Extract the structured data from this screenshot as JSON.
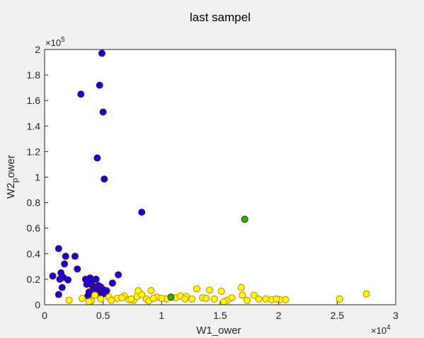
{
  "chart_data": {
    "type": "scatter",
    "title": "last sampel",
    "xlabel": "W1_ower",
    "ylabel": "W2_power",
    "ylabel_base": "W2",
    "ylabel_sub": "p",
    "ylabel_rest": "ower",
    "xlim": [
      0,
      30000
    ],
    "ylim": [
      0,
      200000
    ],
    "x_multiplier_label": "×10",
    "x_multiplier_exp": "4",
    "y_multiplier_label": "×10",
    "y_multiplier_exp": "5",
    "x_ticks": [
      0,
      5000,
      10000,
      15000,
      20000,
      25000,
      30000
    ],
    "x_tick_labels": [
      "0",
      "0.5",
      "1",
      "1.5",
      "2",
      "2.5",
      "3"
    ],
    "y_ticks": [
      0,
      20000,
      40000,
      60000,
      80000,
      100000,
      120000,
      140000,
      160000,
      180000,
      200000
    ],
    "y_tick_labels": [
      "0",
      "0.2",
      "0.4",
      "0.6",
      "0.8",
      "1",
      "1.2",
      "1.4",
      "1.6",
      "1.8",
      "2"
    ],
    "grid": false,
    "series": [
      {
        "color": "#0000ff",
        "edge_color": "#8b0000",
        "x": [
          4900,
          3100,
          4700,
          5000,
          4500,
          5100,
          8300,
          1200,
          1800,
          2600,
          1700,
          2800,
          6300,
          5800,
          700,
          1400,
          1300,
          3500,
          3900,
          4400,
          4600,
          3600,
          4100,
          4800,
          4200,
          5000,
          4500,
          3800,
          4700,
          5200,
          4300,
          4900,
          3700,
          1500,
          2000,
          1200,
          1600,
          4000,
          5300
        ],
        "y": [
          197000,
          165000,
          172000,
          151000,
          115000,
          98500,
          72500,
          44000,
          38000,
          38000,
          32000,
          28000,
          23500,
          17000,
          22500,
          25000,
          20000,
          20000,
          21000,
          20000,
          15000,
          16000,
          15000,
          14000,
          12500,
          12000,
          11500,
          10000,
          9500,
          9000,
          8500,
          8000,
          7000,
          13500,
          19500,
          8000,
          21500,
          18000,
          11000
        ]
      },
      {
        "color": "#ffff00",
        "edge_color": "#d97a00",
        "x": [
          3200,
          4000,
          4800,
          5500,
          6200,
          6800,
          7200,
          7600,
          7900,
          8300,
          8700,
          9100,
          9600,
          10400,
          11200,
          11600,
          12100,
          12600,
          13000,
          13500,
          14100,
          14500,
          15100,
          15600,
          16000,
          16900,
          17300,
          17900,
          18300,
          18900,
          19400,
          20100,
          20600,
          25200,
          27500,
          3800,
          4300,
          5700,
          6600,
          7400,
          8000,
          8900,
          9300,
          10000,
          12000,
          13800,
          15300,
          16800,
          19800,
          2100
        ],
        "y": [
          5000,
          3000,
          4500,
          6000,
          5000,
          7000,
          4000,
          3500,
          6500,
          8000,
          4500,
          11000,
          6000,
          4500,
          5500,
          7000,
          6500,
          4500,
          12500,
          5500,
          11500,
          4500,
          10500,
          3500,
          5500,
          7500,
          3500,
          7500,
          4500,
          4500,
          4000,
          4000,
          4000,
          4500,
          8500,
          2500,
          7500,
          3500,
          5500,
          4500,
          11000,
          3000,
          5000,
          5000,
          4500,
          5000,
          2500,
          13500,
          4500,
          3500
        ]
      },
      {
        "color": "#00c800",
        "edge_color": "#8b0000",
        "x": [
          10800,
          17100
        ],
        "y": [
          6000,
          67000
        ]
      }
    ]
  }
}
